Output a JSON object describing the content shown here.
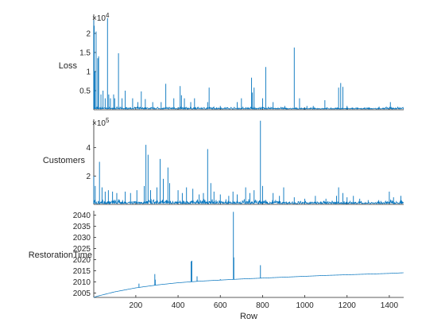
{
  "chart_data": {
    "type": "stacked-line",
    "xlabel": "Row",
    "x_ticks": [
      200,
      400,
      600,
      800,
      1000,
      1200,
      1400
    ],
    "x_range": [
      1,
      1468
    ],
    "series_color": "#0072BD",
    "panels": [
      {
        "ylabel": "Loss",
        "multiplier": "×10",
        "exponent": "4",
        "ylim": [
          0,
          2.5
        ],
        "yticks": [
          0.5,
          1,
          1.5,
          2
        ],
        "ytick_labels": [
          "0.5",
          "1",
          "1.5",
          "2"
        ],
        "baseline": 0.02,
        "noise": 0.06,
        "spikes": [
          [
            1,
            2.35
          ],
          [
            3,
            2.2
          ],
          [
            6,
            1.0
          ],
          [
            12,
            2.05
          ],
          [
            20,
            1.35
          ],
          [
            24,
            1.4
          ],
          [
            35,
            0.4
          ],
          [
            45,
            0.5
          ],
          [
            55,
            0.3
          ],
          [
            66,
            2.4
          ],
          [
            72,
            0.4
          ],
          [
            80,
            0.3
          ],
          [
            95,
            0.4
          ],
          [
            100,
            0.3
          ],
          [
            118,
            1.48
          ],
          [
            135,
            0.3
          ],
          [
            150,
            0.5
          ],
          [
            185,
            0.3
          ],
          [
            210,
            0.2
          ],
          [
            226,
            0.48
          ],
          [
            245,
            0.28
          ],
          [
            280,
            0.2
          ],
          [
            320,
            0.2
          ],
          [
            342,
            0.68
          ],
          [
            380,
            0.3
          ],
          [
            410,
            0.62
          ],
          [
            416,
            0.38
          ],
          [
            430,
            0.3
          ],
          [
            460,
            0.2
          ],
          [
            478,
            0.3
          ],
          [
            540,
            0.2
          ],
          [
            547,
            0.58
          ],
          [
            600,
            0.1
          ],
          [
            680,
            0.2
          ],
          [
            700,
            0.3
          ],
          [
            748,
            0.84
          ],
          [
            752,
            0.45
          ],
          [
            760,
            0.58
          ],
          [
            800,
            0.3
          ],
          [
            815,
            1.12
          ],
          [
            850,
            0.2
          ],
          [
            905,
            0.1
          ],
          [
            950,
            1.63
          ],
          [
            975,
            0.3
          ],
          [
            1010,
            0.1
          ],
          [
            1040,
            0.1
          ],
          [
            1095,
            0.25
          ],
          [
            1160,
            0.58
          ],
          [
            1170,
            0.7
          ],
          [
            1180,
            0.6
          ],
          [
            1200,
            0.1
          ],
          [
            1250,
            0.05
          ],
          [
            1300,
            0.05
          ],
          [
            1352,
            0.08
          ],
          [
            1405,
            0.2
          ],
          [
            1420,
            0.05
          ],
          [
            1445,
            0.05
          ]
        ]
      },
      {
        "ylabel": "Customers",
        "multiplier": "×10",
        "exponent": "5",
        "ylim": [
          0,
          6
        ],
        "yticks": [
          2,
          4
        ],
        "ytick_labels": [
          "2",
          "4"
        ],
        "baseline": 0.05,
        "noise": 0.35,
        "spikes": [
          [
            1,
            2.0
          ],
          [
            8,
            1.3
          ],
          [
            28,
            3.0
          ],
          [
            40,
            1.2
          ],
          [
            55,
            0.9
          ],
          [
            70,
            1.0
          ],
          [
            90,
            0.9
          ],
          [
            110,
            0.8
          ],
          [
            150,
            0.9
          ],
          [
            175,
            0.8
          ],
          [
            205,
            1.0
          ],
          [
            240,
            1.3
          ],
          [
            248,
            4.2
          ],
          [
            258,
            3.5
          ],
          [
            270,
            1.0
          ],
          [
            300,
            1.2
          ],
          [
            315,
            3.2
          ],
          [
            330,
            1.8
          ],
          [
            352,
            2.6
          ],
          [
            360,
            1.5
          ],
          [
            400,
            1.0
          ],
          [
            420,
            0.8
          ],
          [
            440,
            1.2
          ],
          [
            470,
            1.1
          ],
          [
            500,
            0.7
          ],
          [
            520,
            0.8
          ],
          [
            540,
            3.9
          ],
          [
            555,
            1.5
          ],
          [
            570,
            0.9
          ],
          [
            600,
            0.7
          ],
          [
            640,
            0.6
          ],
          [
            660,
            0.9
          ],
          [
            680,
            0.7
          ],
          [
            720,
            1.2
          ],
          [
            740,
            0.8
          ],
          [
            760,
            1.0
          ],
          [
            790,
            5.9
          ],
          [
            800,
            1.3
          ],
          [
            850,
            0.8
          ],
          [
            880,
            0.6
          ],
          [
            900,
            1.2
          ],
          [
            950,
            0.5
          ],
          [
            1000,
            0.4
          ],
          [
            1050,
            0.6
          ],
          [
            1100,
            0.4
          ],
          [
            1150,
            0.6
          ],
          [
            1160,
            1.2
          ],
          [
            1180,
            0.8
          ],
          [
            1200,
            0.5
          ],
          [
            1230,
            0.6
          ],
          [
            1260,
            0.4
          ],
          [
            1300,
            0.3
          ],
          [
            1350,
            0.3
          ],
          [
            1400,
            0.9
          ],
          [
            1420,
            0.5
          ],
          [
            1455,
            0.6
          ]
        ]
      },
      {
        "ylabel": "RestorationTime",
        "ylim": [
          2003,
          2042
        ],
        "yticks": [
          2005,
          2010,
          2015,
          2020,
          2025,
          2030,
          2035,
          2040
        ],
        "ytick_labels": [
          "2005",
          "2010",
          "2015",
          "2020",
          "2025",
          "2030",
          "2035",
          "2040"
        ],
        "trend": [
          [
            1,
            2003.0
          ],
          [
            20,
            2003.6
          ],
          [
            100,
            2005.5
          ],
          [
            200,
            2007.3
          ],
          [
            300,
            2008.6
          ],
          [
            400,
            2009.6
          ],
          [
            500,
            2010.3
          ],
          [
            600,
            2010.8
          ],
          [
            700,
            2011.3
          ],
          [
            800,
            2011.7
          ],
          [
            900,
            2012.1
          ],
          [
            1000,
            2012.5
          ],
          [
            1100,
            2012.9
          ],
          [
            1200,
            2013.2
          ],
          [
            1300,
            2013.5
          ],
          [
            1400,
            2013.8
          ],
          [
            1468,
            2014.1
          ]
        ],
        "spikes": [
          [
            215,
            2009.2
          ],
          [
            290,
            2013.5
          ],
          [
            292,
            2011.0
          ],
          [
            462,
            2019.2
          ],
          [
            465,
            2019.5
          ],
          [
            490,
            2012.5
          ],
          [
            600,
            2011.2
          ],
          [
            662,
            2041.5
          ],
          [
            664,
            2021.0
          ],
          [
            790,
            2017.5
          ],
          [
            850,
            2012.0
          ]
        ]
      }
    ]
  }
}
